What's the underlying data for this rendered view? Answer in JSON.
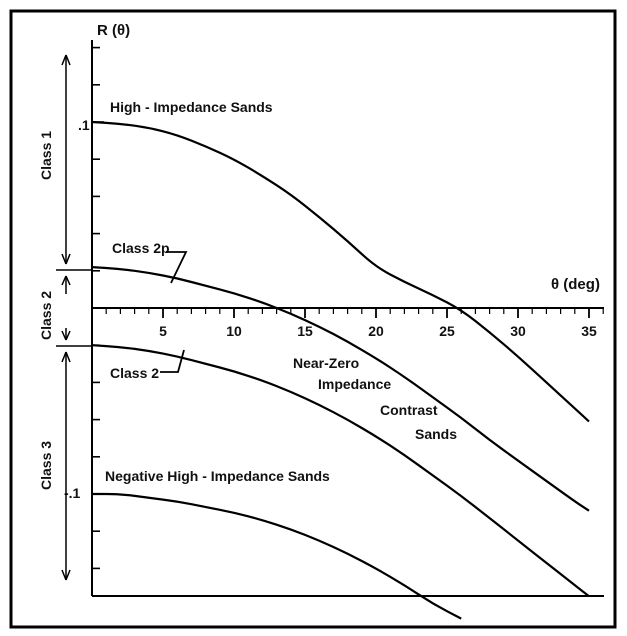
{
  "chart_data": {
    "type": "line",
    "ylabel": "R (θ)",
    "xlabel": "θ (deg)",
    "xlim": [
      0,
      36
    ],
    "ylim": [
      -0.2,
      0.15
    ],
    "x_ticks": [
      5,
      10,
      15,
      20,
      25,
      30,
      35
    ],
    "x_tick_labels": [
      "5",
      "10",
      "15",
      "20",
      "25",
      "30",
      "35"
    ],
    "y_tick_labels": [
      {
        "value": 0.1,
        "label": ".1"
      },
      {
        "value": -0.1,
        "label": "-.1"
      }
    ],
    "series": [
      {
        "name": "High-Impedance Sands",
        "x": [
          0,
          2,
          4,
          6,
          8,
          10,
          12,
          14,
          16,
          18,
          20,
          22,
          24,
          26,
          28,
          30,
          32,
          34,
          35
        ],
        "y": [
          0.1,
          0.099,
          0.097,
          0.093,
          0.087,
          0.08,
          0.071,
          0.061,
          0.049,
          0.036,
          0.022,
          0.014,
          0.007,
          -0.001,
          -0.013,
          -0.026,
          -0.04,
          -0.054,
          -0.061
        ]
      },
      {
        "name": "Class 2p",
        "x": [
          0,
          2,
          4,
          6,
          8,
          10,
          12,
          14,
          16,
          18,
          20,
          22,
          24,
          26,
          28,
          30,
          32,
          34,
          35
        ],
        "y": [
          0.022,
          0.021,
          0.019,
          0.016,
          0.012,
          0.008,
          0.003,
          -0.003,
          -0.01,
          -0.018,
          -0.027,
          -0.037,
          -0.048,
          -0.059,
          -0.071,
          -0.082,
          -0.093,
          -0.104,
          -0.109
        ]
      },
      {
        "name": "Class 2",
        "x": [
          0,
          2,
          4,
          6,
          8,
          10,
          12,
          14,
          16,
          18,
          20,
          22,
          24,
          26,
          28,
          30,
          32,
          34,
          35
        ],
        "y": [
          -0.02,
          -0.021,
          -0.023,
          -0.026,
          -0.03,
          -0.034,
          -0.039,
          -0.045,
          -0.052,
          -0.06,
          -0.069,
          -0.079,
          -0.09,
          -0.101,
          -0.113,
          -0.125,
          -0.137,
          -0.149,
          -0.155
        ]
      },
      {
        "name": "Negative High-Impedance Sands",
        "x": [
          0,
          2,
          4,
          6,
          8,
          10,
          12,
          14,
          16,
          18,
          20,
          22,
          24,
          26
        ],
        "y": [
          -0.1,
          -0.1,
          -0.102,
          -0.104,
          -0.107,
          -0.11,
          -0.114,
          -0.119,
          -0.125,
          -0.132,
          -0.14,
          -0.149,
          -0.159,
          -0.167
        ]
      }
    ],
    "annotations": {
      "high": "High - Impedance Sands",
      "class2p": "Class 2p",
      "class2": "Class 2",
      "near_zero": [
        "Near-Zero",
        "Impedance",
        "Contrast",
        "Sands"
      ],
      "negative": "Negative High - Impedance Sands"
    },
    "classes": [
      {
        "name": "Class 1",
        "range": [
          0.022,
          0.15
        ]
      },
      {
        "name": "Class 2",
        "range": [
          -0.02,
          0.022
        ]
      },
      {
        "name": "Class 3",
        "range": [
          -0.2,
          -0.02
        ]
      }
    ],
    "grid": false
  }
}
